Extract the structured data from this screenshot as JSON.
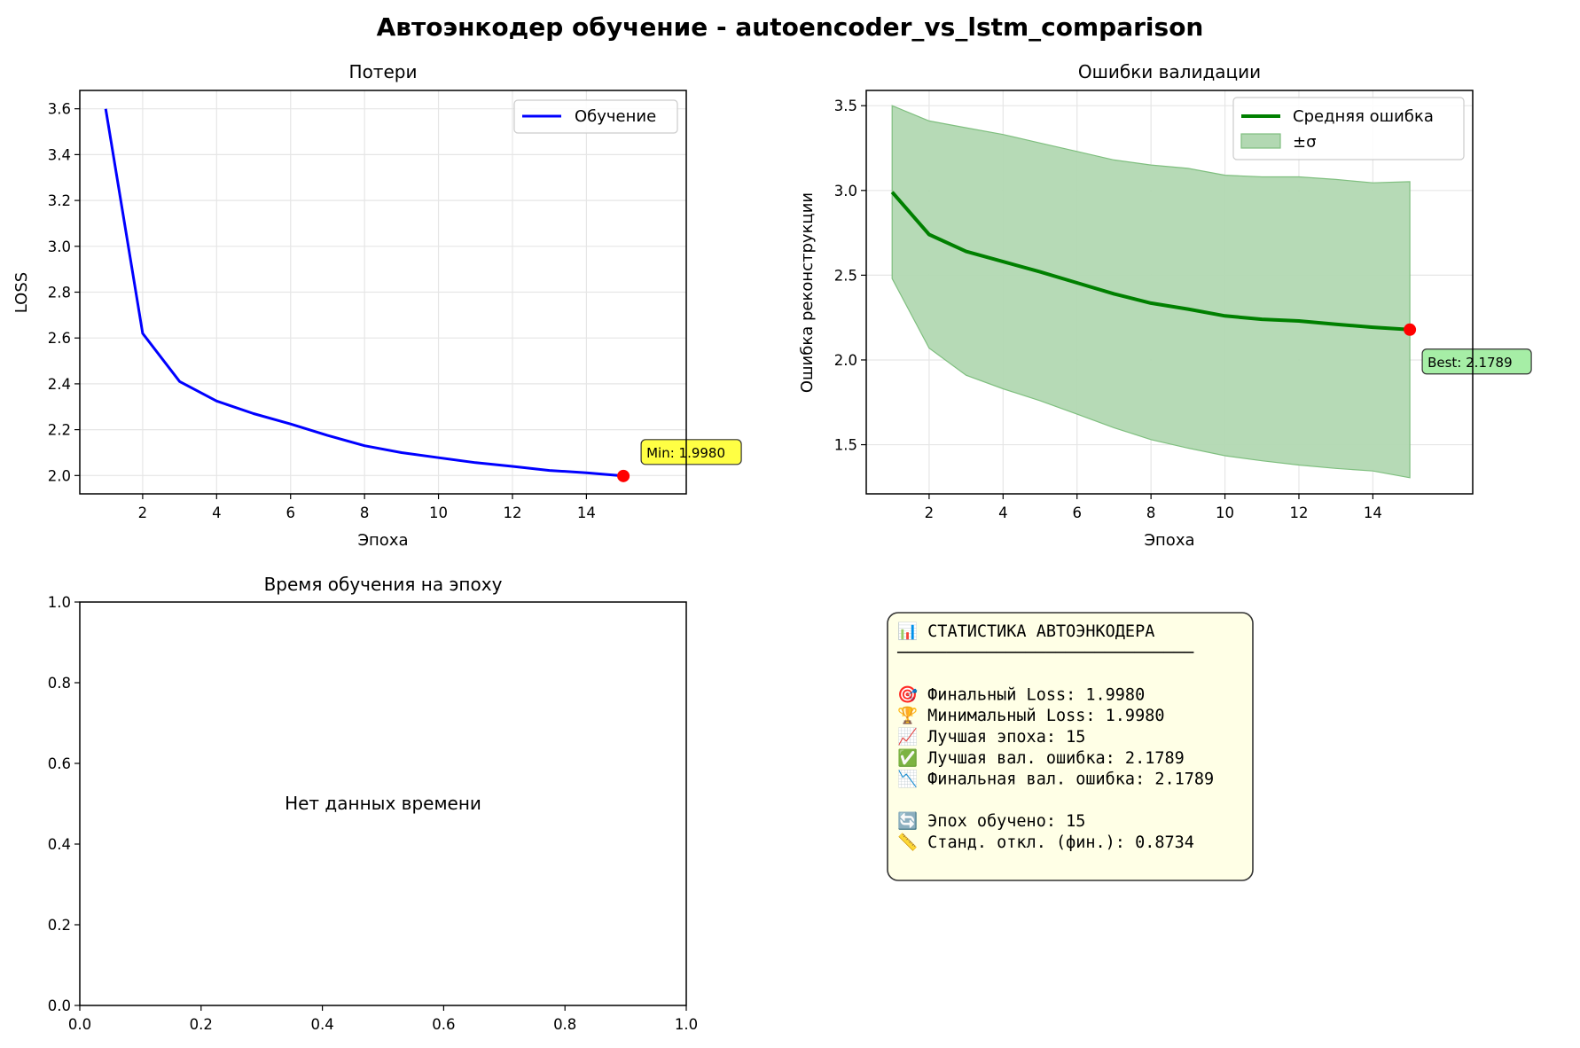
{
  "figure": {
    "title": "Автоэнкодер обучение - autoencoder_vs_lstm_comparison"
  },
  "colors": {
    "train_line": "#0000ff",
    "val_line": "#008000",
    "band_fill": "#b2d8b2",
    "band_edge": "#7fbf7f",
    "marker": "#ff0000",
    "min_box": "#ffff44",
    "best_box": "#a6eea6",
    "stats_box": "#ffffe6",
    "grid": "#e6e6e6"
  },
  "chart_data": [
    {
      "id": "loss",
      "type": "line",
      "title": "Потери",
      "xlabel": "Эпоха",
      "ylabel": "LOSS",
      "xlim": [
        0.3,
        16.7
      ],
      "ylim": [
        1.92,
        3.68
      ],
      "xticks": [
        "2",
        "4",
        "6",
        "8",
        "10",
        "12",
        "14"
      ],
      "yticks": [
        "2.0",
        "2.2",
        "2.4",
        "2.6",
        "2.8",
        "3.0",
        "3.2",
        "3.4",
        "3.6"
      ],
      "grid": true,
      "legend_position": "top-right",
      "x": [
        1,
        2,
        3,
        4,
        5,
        6,
        7,
        8,
        9,
        10,
        11,
        12,
        13,
        14,
        15
      ],
      "series": [
        {
          "name": "Обучение",
          "values": [
            3.6,
            2.62,
            2.41,
            2.325,
            2.27,
            2.225,
            2.175,
            2.13,
            2.1,
            2.078,
            2.056,
            2.04,
            2.022,
            2.012,
            1.998
          ]
        }
      ],
      "highlight": {
        "x": 15,
        "y": 1.998,
        "label": "Min: 1.9980"
      }
    },
    {
      "id": "val",
      "type": "area",
      "title": "Ошибки валидации",
      "xlabel": "Эпоха",
      "ylabel": "Ошибка реконструкции",
      "xlim": [
        0.3,
        16.7
      ],
      "ylim": [
        1.21,
        3.59
      ],
      "xticks": [
        "2",
        "4",
        "6",
        "8",
        "10",
        "12",
        "14"
      ],
      "yticks": [
        "1.5",
        "2.0",
        "2.5",
        "3.0",
        "3.5"
      ],
      "grid": true,
      "legend_position": "top-right",
      "x": [
        1,
        2,
        3,
        4,
        5,
        6,
        7,
        8,
        9,
        10,
        11,
        12,
        13,
        14,
        15
      ],
      "series": [
        {
          "name": "Средняя ошибка",
          "values": [
            2.99,
            2.74,
            2.64,
            2.58,
            2.52,
            2.455,
            2.39,
            2.335,
            2.3,
            2.26,
            2.24,
            2.23,
            2.21,
            2.193,
            2.1789
          ]
        },
        {
          "name": "±σ",
          "lower": [
            2.48,
            2.07,
            1.91,
            1.83,
            1.76,
            1.68,
            1.6,
            1.53,
            1.48,
            1.435,
            1.405,
            1.38,
            1.36,
            1.345,
            1.305
          ],
          "upper": [
            3.5,
            3.41,
            3.37,
            3.33,
            3.28,
            3.23,
            3.18,
            3.15,
            3.13,
            3.09,
            3.08,
            3.08,
            3.065,
            3.045,
            3.052
          ]
        }
      ],
      "highlight": {
        "x": 15,
        "y": 2.1789,
        "label": "Best: 2.1789"
      }
    },
    {
      "id": "time",
      "type": "line",
      "title": "Время обучения на эпоху",
      "xlim": [
        0,
        1
      ],
      "ylim": [
        0,
        1
      ],
      "xticks": [
        "0.0",
        "0.2",
        "0.4",
        "0.6",
        "0.8",
        "1.0"
      ],
      "yticks": [
        "0.0",
        "0.2",
        "0.4",
        "0.6",
        "0.8",
        "1.0"
      ],
      "grid": false,
      "message": "Нет данных времени",
      "series": []
    }
  ],
  "stats": {
    "lines": [
      "📊 СТАТИСТИКА АВТОЭНКОДЕРА",
      "──────────────────────────────",
      "",
      "🎯 Финальный Loss: 1.9980",
      "🏆 Минимальный Loss: 1.9980",
      "📈 Лучшая эпоха: 15",
      "✅ Лучшая вал. ошибка: 2.1789",
      "📉 Финальная вал. ошибка: 2.1789",
      "",
      "🔄 Эпох обучено: 15",
      "📏 Станд. откл. (фин.): 0.8734"
    ]
  }
}
